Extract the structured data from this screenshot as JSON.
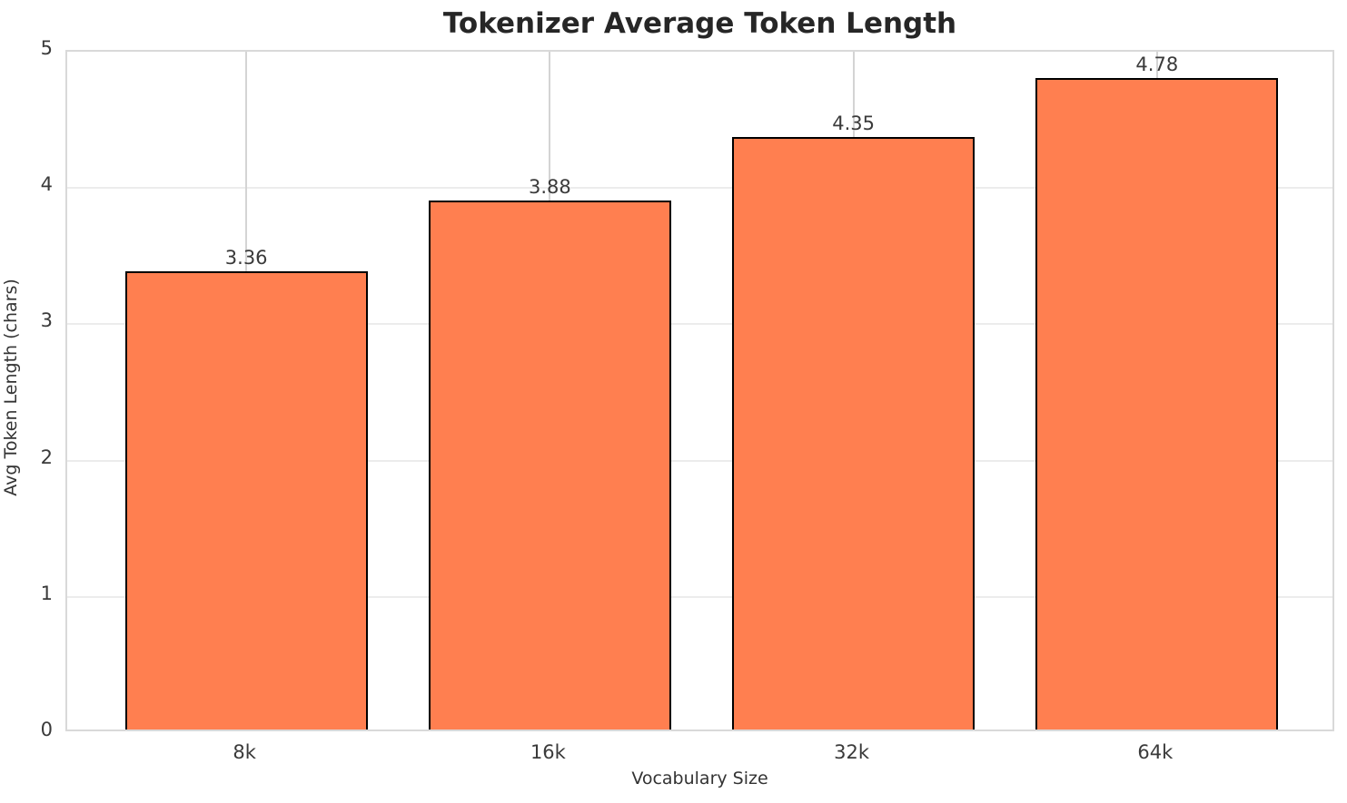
{
  "title": "Tokenizer Average Token Length",
  "chart_data": {
    "type": "bar",
    "title": "Tokenizer Average Token Length",
    "xlabel": "Vocabulary Size",
    "ylabel": "Avg Token Length (chars)",
    "categories": [
      "8k",
      "16k",
      "32k",
      "64k"
    ],
    "values": [
      3.36,
      3.88,
      4.35,
      4.78
    ],
    "value_labels": [
      "3.36",
      "3.88",
      "4.35",
      "4.78"
    ],
    "ylim": [
      0,
      5
    ],
    "yticks": [
      0,
      1,
      2,
      3,
      4,
      5
    ],
    "grid": true,
    "legend_position": "none",
    "bar_color": "#FF7F50",
    "bar_edge_color": "#000000",
    "grid_color": "#ececec",
    "spine_color": "#d9d9d9",
    "text_color": "#3a3a3a"
  }
}
